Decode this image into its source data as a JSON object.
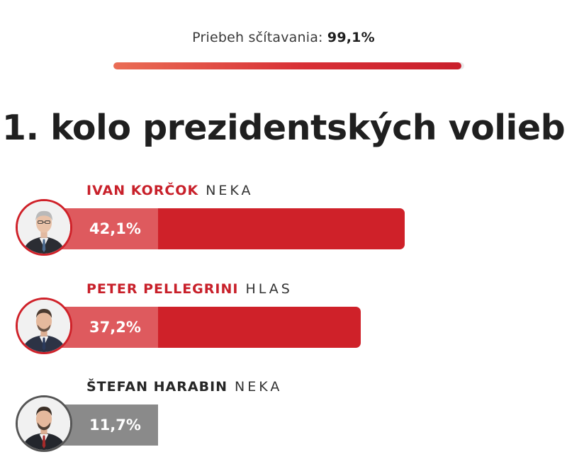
{
  "progress": {
    "label": "Priebeh sčítavania:",
    "value_text": "99,1%",
    "fraction": 0.991
  },
  "title": "1. kolo prezidentských volieb",
  "colors": {
    "red_dark": "#cf2129",
    "red_light": "#de5a5e",
    "gray_dark": "#555555",
    "gray_light": "#8a8a8a",
    "name_red": "#c8202a",
    "name_dark": "#262626"
  },
  "chart_data": {
    "type": "bar",
    "orientation": "horizontal",
    "categories": [
      "IVAN KORČOK",
      "PETER PELLEGRINI",
      "ŠTEFAN HARABIN"
    ],
    "values": [
      42.1,
      37.2,
      11.7
    ],
    "value_labels": [
      "42,1%",
      "37,2%",
      "11,7%"
    ],
    "unit": "%",
    "xlim": [
      0,
      56.9
    ],
    "title": "1. kolo prezidentských volieb"
  },
  "candidates": [
    {
      "name": "IVAN KORČOK",
      "party": "NEKA",
      "pct_label": "42,1%",
      "value": 42.1,
      "scheme": "red",
      "avatar_icon": "candidate-portrait-icon"
    },
    {
      "name": "PETER PELLEGRINI",
      "party": "HLAS",
      "pct_label": "37,2%",
      "value": 37.2,
      "scheme": "red",
      "avatar_icon": "candidate-portrait-icon"
    },
    {
      "name": "ŠTEFAN HARABIN",
      "party": "NEKA",
      "pct_label": "11,7%",
      "value": 11.7,
      "scheme": "gray",
      "avatar_icon": "candidate-portrait-icon"
    }
  ]
}
